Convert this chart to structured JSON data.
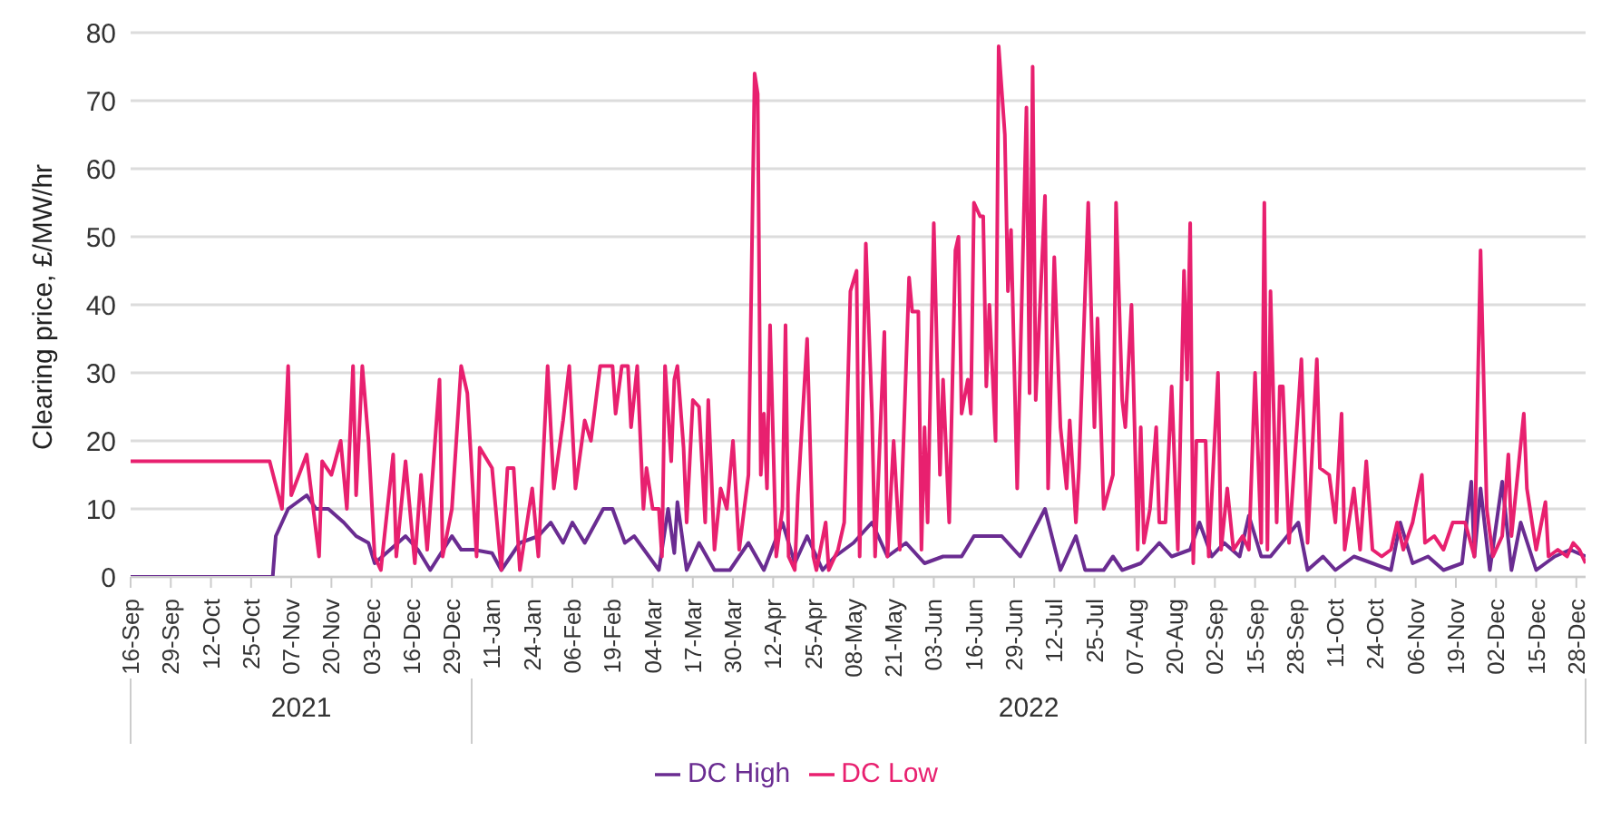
{
  "chart_data": {
    "type": "line",
    "ylabel": "Clearing price, £/MW/hr",
    "ylim": [
      0,
      80
    ],
    "yticks": [
      0,
      10,
      20,
      30,
      40,
      50,
      60,
      70,
      80
    ],
    "xlim": [
      "2021-09-16",
      "2022-12-31"
    ],
    "xticks": [
      {
        "value": "2021-09-16",
        "label": "16-Sep"
      },
      {
        "value": "2021-09-29",
        "label": "29-Sep"
      },
      {
        "value": "2021-10-12",
        "label": "12-Oct"
      },
      {
        "value": "2021-10-25",
        "label": "25-Oct"
      },
      {
        "value": "2021-11-07",
        "label": "07-Nov"
      },
      {
        "value": "2021-11-20",
        "label": "20-Nov"
      },
      {
        "value": "2021-12-03",
        "label": "03-Dec"
      },
      {
        "value": "2021-12-16",
        "label": "16-Dec"
      },
      {
        "value": "2021-12-29",
        "label": "29-Dec"
      },
      {
        "value": "2022-01-11",
        "label": "11-Jan"
      },
      {
        "value": "2022-01-24",
        "label": "24-Jan"
      },
      {
        "value": "2022-02-06",
        "label": "06-Feb"
      },
      {
        "value": "2022-02-19",
        "label": "19-Feb"
      },
      {
        "value": "2022-03-04",
        "label": "04-Mar"
      },
      {
        "value": "2022-03-17",
        "label": "17-Mar"
      },
      {
        "value": "2022-03-30",
        "label": "30-Mar"
      },
      {
        "value": "2022-04-12",
        "label": "12-Apr"
      },
      {
        "value": "2022-04-25",
        "label": "25-Apr"
      },
      {
        "value": "2022-05-08",
        "label": "08-May"
      },
      {
        "value": "2022-05-21",
        "label": "21-May"
      },
      {
        "value": "2022-06-03",
        "label": "03-Jun"
      },
      {
        "value": "2022-06-16",
        "label": "16-Jun"
      },
      {
        "value": "2022-06-29",
        "label": "29-Jun"
      },
      {
        "value": "2022-07-12",
        "label": "12-Jul"
      },
      {
        "value": "2022-07-25",
        "label": "25-Jul"
      },
      {
        "value": "2022-08-07",
        "label": "07-Aug"
      },
      {
        "value": "2022-08-20",
        "label": "20-Aug"
      },
      {
        "value": "2022-09-02",
        "label": "02-Sep"
      },
      {
        "value": "2022-09-15",
        "label": "15-Sep"
      },
      {
        "value": "2022-09-28",
        "label": "28-Sep"
      },
      {
        "value": "2022-10-11",
        "label": "11-Oct"
      },
      {
        "value": "2022-10-24",
        "label": "24-Oct"
      },
      {
        "value": "2022-11-06",
        "label": "06-Nov"
      },
      {
        "value": "2022-11-19",
        "label": "19-Nov"
      },
      {
        "value": "2022-12-02",
        "label": "02-Dec"
      },
      {
        "value": "2022-12-15",
        "label": "15-Dec"
      },
      {
        "value": "2022-12-28",
        "label": "28-Dec"
      }
    ],
    "annotations": [
      "2021",
      "2022"
    ],
    "grid": "y",
    "legend": "bottom",
    "series": [
      {
        "name": "DC High",
        "color": "#6a2c91",
        "x": [
          "2021-09-16",
          "2021-11-01",
          "2021-11-02",
          "2021-11-06",
          "2021-11-12",
          "2021-11-15",
          "2021-11-19",
          "2021-11-24",
          "2021-11-28",
          "2021-12-02",
          "2021-12-04",
          "2021-12-09",
          "2021-12-14",
          "2021-12-18",
          "2021-12-22",
          "2021-12-29",
          "2022-01-01",
          "2022-01-05",
          "2022-01-11",
          "2022-01-14",
          "2022-01-20",
          "2022-01-26",
          "2022-01-30",
          "2022-02-03",
          "2022-02-06",
          "2022-02-10",
          "2022-02-16",
          "2022-02-19",
          "2022-02-23",
          "2022-02-26",
          "2022-03-02",
          "2022-03-06",
          "2022-03-09",
          "2022-03-11",
          "2022-03-12",
          "2022-03-15",
          "2022-03-19",
          "2022-03-24",
          "2022-03-29",
          "2022-04-04",
          "2022-04-09",
          "2022-04-15",
          "2022-04-19",
          "2022-04-23",
          "2022-04-28",
          "2022-05-02",
          "2022-05-08",
          "2022-05-14",
          "2022-05-19",
          "2022-05-25",
          "2022-05-31",
          "2022-06-06",
          "2022-06-12",
          "2022-06-16",
          "2022-06-21",
          "2022-06-25",
          "2022-07-01",
          "2022-07-09",
          "2022-07-14",
          "2022-07-19",
          "2022-07-22",
          "2022-07-28",
          "2022-07-31",
          "2022-08-03",
          "2022-08-09",
          "2022-08-15",
          "2022-08-19",
          "2022-08-25",
          "2022-08-28",
          "2022-09-01",
          "2022-09-05",
          "2022-09-10",
          "2022-09-13",
          "2022-09-17",
          "2022-09-20",
          "2022-09-29",
          "2022-10-02",
          "2022-10-07",
          "2022-10-11",
          "2022-10-17",
          "2022-10-23",
          "2022-10-29",
          "2022-11-01",
          "2022-11-05",
          "2022-11-10",
          "2022-11-15",
          "2022-11-21",
          "2022-11-24",
          "2022-11-25",
          "2022-11-27",
          "2022-11-30",
          "2022-12-04",
          "2022-12-07",
          "2022-12-10",
          "2022-12-15",
          "2022-12-21",
          "2022-12-26",
          "2022-12-31"
        ],
        "values": [
          0,
          0,
          6,
          10,
          12,
          10,
          10,
          8,
          6,
          5,
          2,
          4,
          6,
          4,
          1,
          6,
          4,
          4,
          3.5,
          1,
          5,
          6,
          8,
          5,
          8,
          5,
          10,
          10,
          5,
          6,
          3.5,
          1,
          10,
          3.5,
          11,
          1,
          5,
          1,
          1,
          5,
          1,
          8,
          2,
          6,
          1,
          3,
          5,
          8,
          3,
          5,
          2,
          3,
          3,
          6,
          6,
          6,
          3,
          10,
          1,
          6,
          1,
          1,
          3,
          1,
          2,
          5,
          3,
          4,
          8,
          3,
          5,
          3,
          9,
          3,
          3,
          8,
          1,
          3,
          1,
          3,
          2,
          1,
          8,
          2,
          3,
          1,
          2,
          14,
          3,
          13,
          1,
          14,
          1,
          8,
          1,
          3,
          4,
          3
        ]
      },
      {
        "name": "DC Low",
        "color": "#e8206f",
        "x": [
          "2021-09-16",
          "2021-10-31",
          "2021-11-04",
          "2021-11-06",
          "2021-11-07",
          "2021-11-12",
          "2021-11-16",
          "2021-11-17",
          "2021-11-20",
          "2021-11-23",
          "2021-11-25",
          "2021-11-27",
          "2021-11-28",
          "2021-11-30",
          "2021-12-02",
          "2021-12-04",
          "2021-12-06",
          "2021-12-10",
          "2021-12-11",
          "2021-12-14",
          "2021-12-17",
          "2021-12-19",
          "2021-12-21",
          "2021-12-25",
          "2021-12-26",
          "2021-12-29",
          "2022-01-01",
          "2022-01-03",
          "2022-01-06",
          "2022-01-07",
          "2022-01-11",
          "2022-01-14",
          "2022-01-16",
          "2022-01-18",
          "2022-01-20",
          "2022-01-24",
          "2022-01-26",
          "2022-01-29",
          "2022-01-31",
          "2022-02-03",
          "2022-02-05",
          "2022-02-07",
          "2022-02-10",
          "2022-02-12",
          "2022-02-15",
          "2022-02-19",
          "2022-02-20",
          "2022-02-22",
          "2022-02-24",
          "2022-02-25",
          "2022-02-27",
          "2022-03-01",
          "2022-03-02",
          "2022-03-04",
          "2022-03-06",
          "2022-03-07",
          "2022-03-08",
          "2022-03-10",
          "2022-03-11",
          "2022-03-12",
          "2022-03-14",
          "2022-03-15",
          "2022-03-17",
          "2022-03-19",
          "2022-03-21",
          "2022-03-22",
          "2022-03-24",
          "2022-03-26",
          "2022-03-28",
          "2022-03-30",
          "2022-04-01",
          "2022-04-04",
          "2022-04-06",
          "2022-04-07",
          "2022-04-08",
          "2022-04-09",
          "2022-04-10",
          "2022-04-11",
          "2022-04-13",
          "2022-04-15",
          "2022-04-16",
          "2022-04-17",
          "2022-04-19",
          "2022-04-20",
          "2022-04-23",
          "2022-04-25",
          "2022-04-26",
          "2022-04-29",
          "2022-04-30",
          "2022-05-03",
          "2022-05-05",
          "2022-05-07",
          "2022-05-09",
          "2022-05-10",
          "2022-05-12",
          "2022-05-14",
          "2022-05-15",
          "2022-05-18",
          "2022-05-19",
          "2022-05-21",
          "2022-05-23",
          "2022-05-26",
          "2022-05-27",
          "2022-05-29",
          "2022-05-30",
          "2022-05-31",
          "2022-06-01",
          "2022-06-03",
          "2022-06-05",
          "2022-06-06",
          "2022-06-08",
          "2022-06-10",
          "2022-06-11",
          "2022-06-12",
          "2022-06-14",
          "2022-06-15",
          "2022-06-16",
          "2022-06-18",
          "2022-06-19",
          "2022-06-20",
          "2022-06-21",
          "2022-06-23",
          "2022-06-24",
          "2022-06-26",
          "2022-06-27",
          "2022-06-28",
          "2022-06-30",
          "2022-07-03",
          "2022-07-04",
          "2022-07-05",
          "2022-07-06",
          "2022-07-09",
          "2022-07-10",
          "2022-07-12",
          "2022-07-14",
          "2022-07-16",
          "2022-07-17",
          "2022-07-19",
          "2022-07-20",
          "2022-07-23",
          "2022-07-25",
          "2022-07-26",
          "2022-07-28",
          "2022-07-31",
          "2022-08-01",
          "2022-08-03",
          "2022-08-04",
          "2022-08-06",
          "2022-08-08",
          "2022-08-09",
          "2022-08-10",
          "2022-08-12",
          "2022-08-14",
          "2022-08-15",
          "2022-08-17",
          "2022-08-19",
          "2022-08-21",
          "2022-08-23",
          "2022-08-24",
          "2022-08-25",
          "2022-08-26",
          "2022-08-27",
          "2022-08-30",
          "2022-08-31",
          "2022-09-03",
          "2022-09-04",
          "2022-09-06",
          "2022-09-08",
          "2022-09-11",
          "2022-09-13",
          "2022-09-15",
          "2022-09-17",
          "2022-09-18",
          "2022-09-19",
          "2022-09-20",
          "2022-09-22",
          "2022-09-23",
          "2022-09-24",
          "2022-09-26",
          "2022-09-29",
          "2022-09-30",
          "2022-10-02",
          "2022-10-05",
          "2022-10-06",
          "2022-10-09",
          "2022-10-11",
          "2022-10-13",
          "2022-10-14",
          "2022-10-17",
          "2022-10-19",
          "2022-10-21",
          "2022-10-23",
          "2022-10-26",
          "2022-10-29",
          "2022-10-31",
          "2022-11-02",
          "2022-11-05",
          "2022-11-08",
          "2022-11-09",
          "2022-11-12",
          "2022-11-15",
          "2022-11-18",
          "2022-11-22",
          "2022-11-25",
          "2022-11-27",
          "2022-11-29",
          "2022-12-01",
          "2022-12-04",
          "2022-12-06",
          "2022-12-07",
          "2022-12-11",
          "2022-12-12",
          "2022-12-15",
          "2022-12-18",
          "2022-12-19",
          "2022-12-22",
          "2022-12-25",
          "2022-12-27",
          "2022-12-29",
          "2022-12-31"
        ],
        "values": [
          17,
          17,
          10,
          31,
          12,
          18,
          3,
          17,
          15,
          20,
          10,
          31,
          12,
          31,
          20,
          3,
          1,
          18,
          3,
          17,
          2,
          15,
          4,
          29,
          3,
          10,
          31,
          27,
          3,
          19,
          16,
          1,
          16,
          16,
          1,
          13,
          3,
          31,
          13,
          23,
          31,
          13,
          23,
          20,
          31,
          31,
          24,
          31,
          31,
          22,
          31,
          10,
          16,
          10,
          10,
          3,
          31,
          17,
          29,
          31,
          19,
          8,
          26,
          25,
          8,
          26,
          4,
          13,
          10,
          20,
          4,
          15,
          74,
          71,
          15,
          24,
          13,
          37,
          3,
          10,
          37,
          3,
          1,
          12,
          35,
          3,
          1,
          8,
          1,
          4,
          8,
          42,
          45,
          3,
          49,
          24,
          3,
          36,
          3,
          20,
          4,
          44,
          39,
          39,
          4,
          22,
          8,
          52,
          15,
          29,
          8,
          48,
          50,
          24,
          29,
          24,
          55,
          53,
          53,
          28,
          40,
          20,
          78,
          65,
          42,
          51,
          13,
          69,
          27,
          75,
          26,
          56,
          13,
          47,
          22,
          13,
          23,
          8,
          16,
          55,
          22,
          38,
          10,
          15,
          55,
          26,
          22,
          40,
          4,
          22,
          5,
          10,
          22,
          8,
          8,
          28,
          4,
          45,
          29,
          52,
          2,
          20,
          20,
          3,
          30,
          4,
          13,
          4,
          6,
          4,
          30,
          5,
          55,
          4,
          42,
          8,
          28,
          28,
          5,
          25,
          32,
          5,
          32,
          16,
          15,
          8,
          24,
          4,
          13,
          4,
          17,
          4,
          3,
          4,
          8,
          4,
          8,
          15,
          5,
          6,
          4,
          8,
          8,
          3,
          48,
          10,
          3,
          6,
          18,
          6,
          24,
          13,
          4,
          11,
          3,
          4,
          3,
          5,
          4,
          2
        ]
      }
    ]
  }
}
